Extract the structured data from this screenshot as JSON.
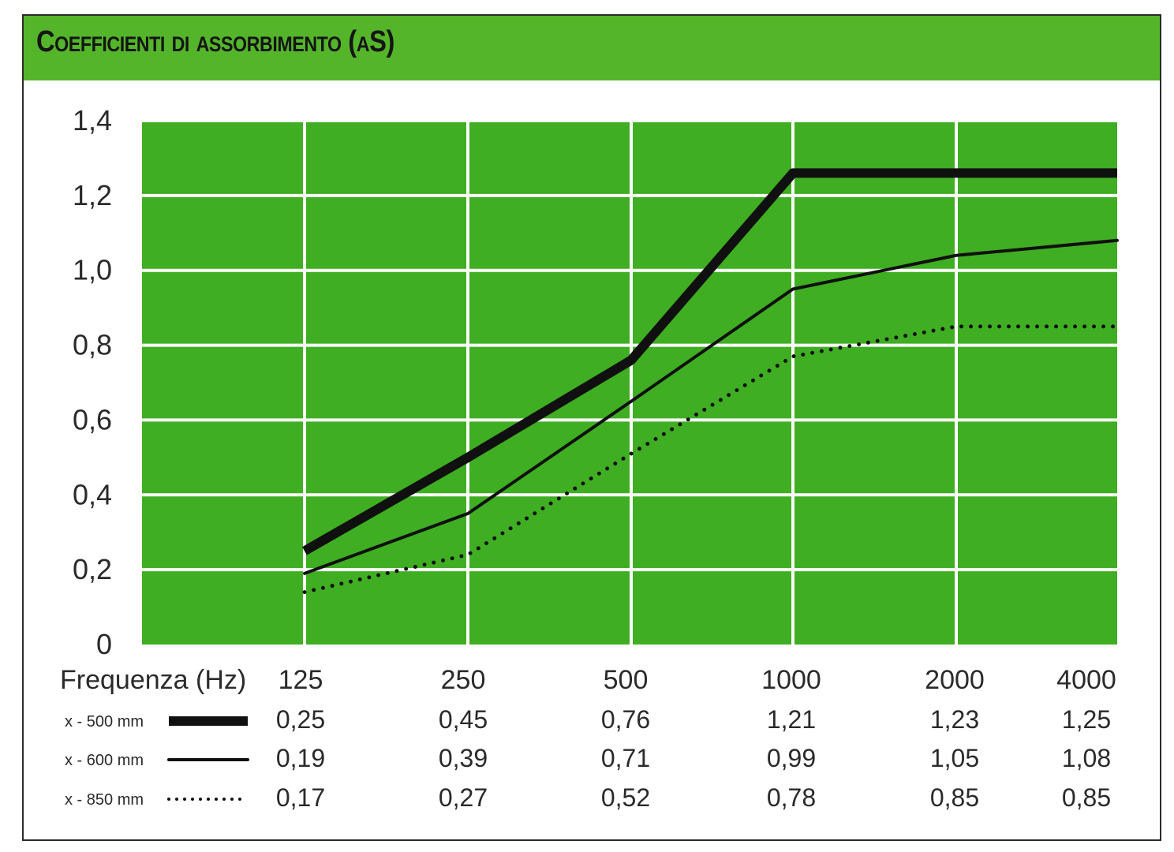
{
  "title": "Coefficienti di assorbimento (αS)",
  "chart_data": {
    "type": "line",
    "title": "Coefficienti di assorbimento (αS)",
    "xlabel": "Frequenza (Hz)",
    "ylabel": "",
    "categories": [
      "125",
      "250",
      "500",
      "1000",
      "2000",
      "4000"
    ],
    "y_ticks": [
      "0",
      "0,2",
      "0,4",
      "0,6",
      "0,8",
      "1,0",
      "1,2",
      "1,4"
    ],
    "ylim": [
      0,
      1.4
    ],
    "grid": true,
    "plot_background": "#3fae22",
    "grid_color": "#ffffff",
    "line_color": "#101010",
    "series": [
      {
        "name": "x - 500 mm",
        "style": "thick",
        "values": [
          0.25,
          0.45,
          0.76,
          1.21,
          1.23,
          1.25
        ],
        "labels": [
          "0,25",
          "0,45",
          "0,76",
          "1,21",
          "1,23",
          "1,25"
        ],
        "plotted": [
          0.25,
          0.5,
          0.76,
          1.26,
          1.26,
          1.26
        ]
      },
      {
        "name": "x - 600 mm",
        "style": "thin",
        "values": [
          0.19,
          0.39,
          0.71,
          0.99,
          1.05,
          1.08
        ],
        "labels": [
          "0,19",
          "0,39",
          "0,71",
          "0,99",
          "1,05",
          "1,08"
        ],
        "plotted": [
          0.19,
          0.35,
          0.65,
          0.95,
          1.04,
          1.08
        ]
      },
      {
        "name": "x - 850 mm",
        "style": "dotted",
        "values": [
          0.17,
          0.27,
          0.52,
          0.78,
          0.85,
          0.85
        ],
        "labels": [
          "0,17",
          "0,27",
          "0,52",
          "0,78",
          "0,85",
          "0,85"
        ],
        "plotted": [
          0.14,
          0.24,
          0.51,
          0.77,
          0.85,
          0.85
        ]
      }
    ]
  }
}
